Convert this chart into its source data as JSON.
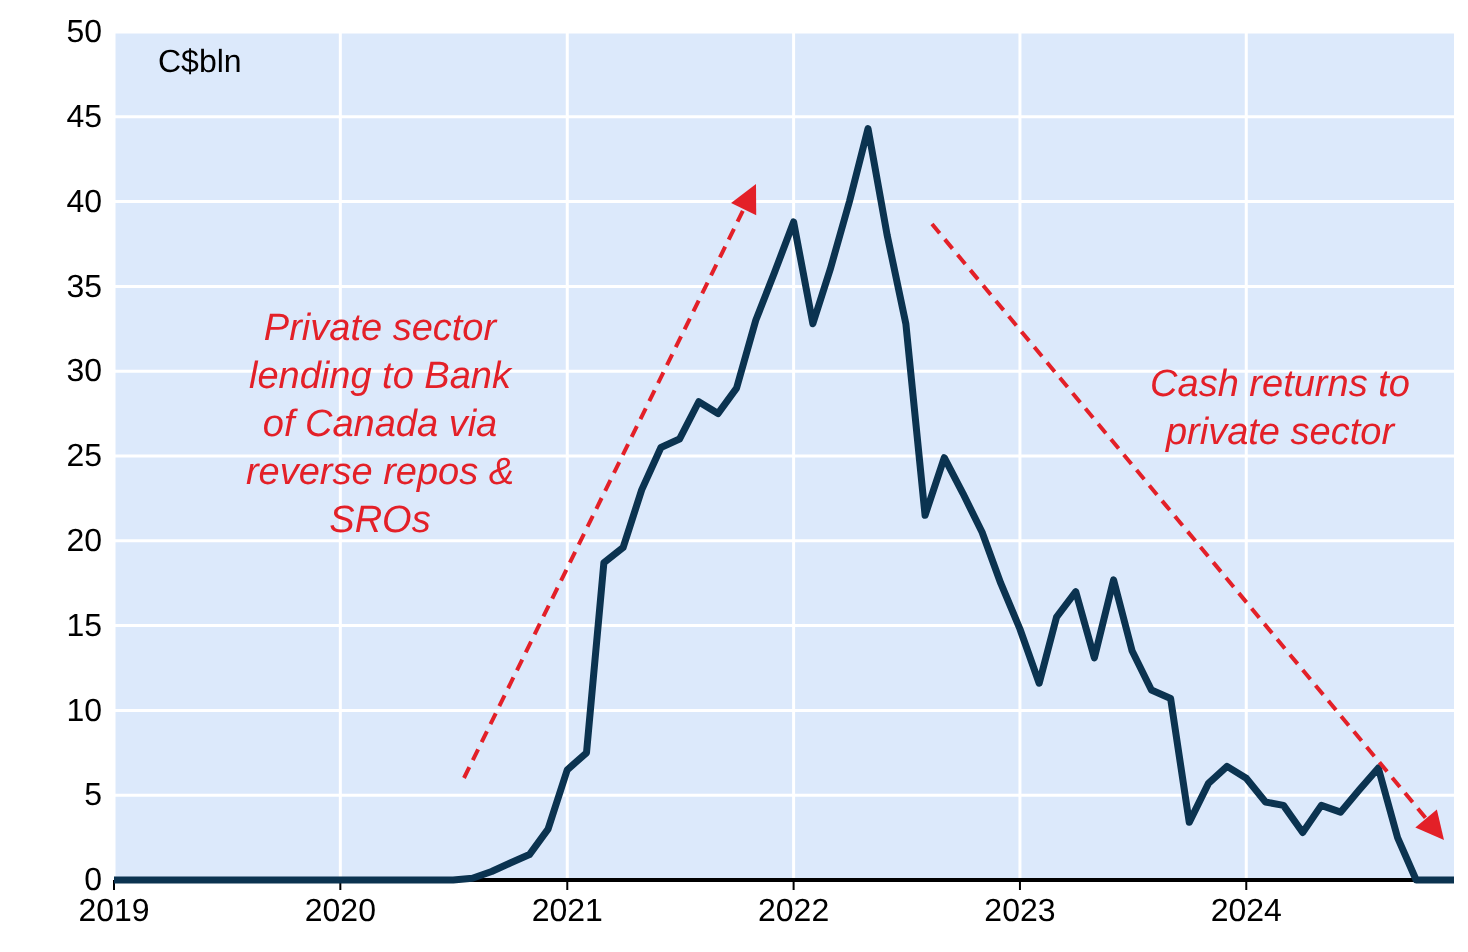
{
  "chart_data": {
    "type": "line",
    "ylabel": "C$bln",
    "x": [
      "2019-01",
      "2019-06",
      "2020-01",
      "2020-07",
      "2020-08",
      "2020-09",
      "2020-10",
      "2020-11",
      "2020-12",
      "2021-01",
      "2021-02",
      "2021-03",
      "2021-04",
      "2021-05",
      "2021-06",
      "2021-07",
      "2021-08",
      "2021-09",
      "2021-10",
      "2021-11",
      "2021-12",
      "2022-01",
      "2022-02",
      "2022-03",
      "2022-04",
      "2022-05",
      "2022-06",
      "2022-07",
      "2022-08",
      "2022-09",
      "2022-10",
      "2022-11",
      "2022-12",
      "2023-01",
      "2023-02",
      "2023-03",
      "2023-04",
      "2023-05",
      "2023-06",
      "2023-07",
      "2023-08",
      "2023-09",
      "2023-10",
      "2023-11",
      "2023-12",
      "2024-01",
      "2024-02",
      "2024-03",
      "2024-04",
      "2024-05",
      "2024-06",
      "2024-07",
      "2024-08",
      "2024-09",
      "2024-10",
      "2024-11",
      "2024-12"
    ],
    "series": [
      {
        "color": "#0b3350",
        "values": [
          0,
          0,
          0,
          0,
          0.1,
          0.5,
          1.0,
          1.5,
          3,
          6.5,
          7.5,
          18.7,
          19.6,
          23,
          25.5,
          26,
          28.2,
          27.5,
          29,
          33,
          35.8,
          38.8,
          32.8,
          36,
          40,
          44.3,
          38,
          32.8,
          21.5,
          24.9,
          22.8,
          20.5,
          17.5,
          14.8,
          11.6,
          15.5,
          17,
          13.1,
          17.7,
          13.5,
          11.2,
          10.7,
          3.4,
          5.7,
          6.7,
          6,
          4.6,
          4.4,
          2.8,
          4.4,
          4,
          5.3,
          6.6,
          2.5,
          0,
          0,
          0
        ]
      }
    ],
    "xlim": [
      "2019-01",
      "2024-12"
    ],
    "xticks": [
      "2019",
      "2020",
      "2021",
      "2022",
      "2023",
      "2024"
    ],
    "ylim": [
      0,
      50
    ],
    "yticks": [
      0,
      5,
      10,
      15,
      20,
      25,
      30,
      35,
      40,
      45,
      50
    ],
    "grid": true,
    "marker": "none",
    "line_style": "solid",
    "annotations": [
      "Private sector lending to Bank of Canada via reverse repos & SROs",
      "Cash returns to private sector"
    ]
  }
}
